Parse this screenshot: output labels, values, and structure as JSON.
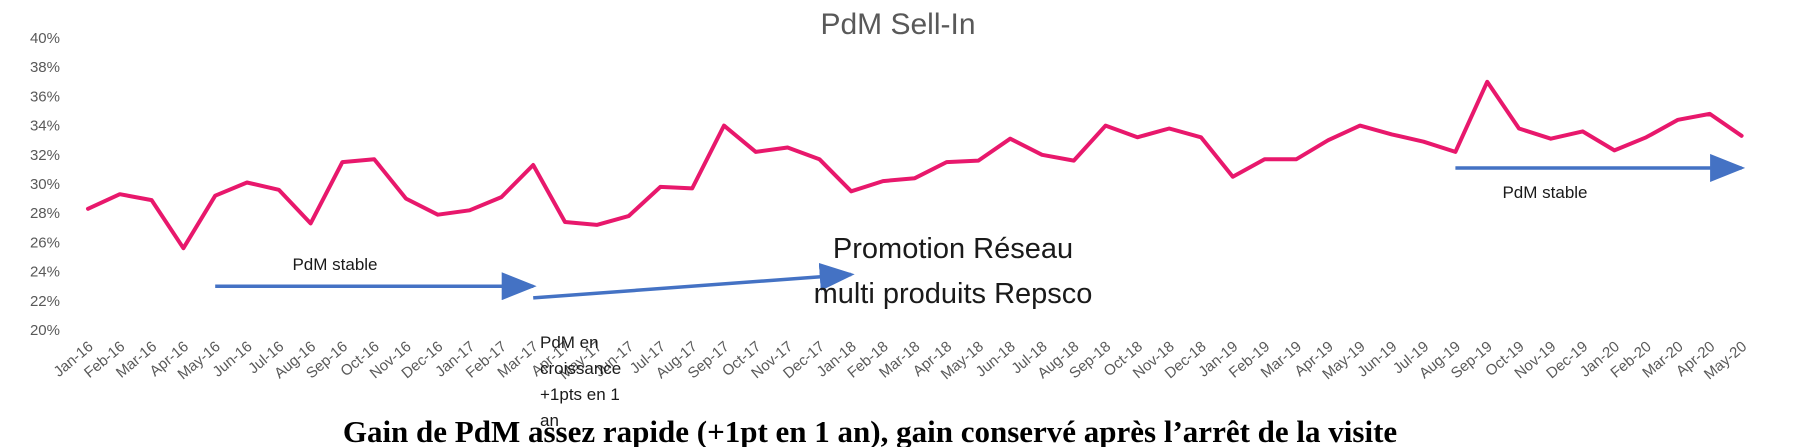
{
  "chart_data": {
    "type": "line",
    "title": "PdM Sell-In",
    "ylim": [
      20,
      40
    ],
    "yticks": [
      "20%",
      "22%",
      "24%",
      "26%",
      "28%",
      "30%",
      "32%",
      "34%",
      "36%",
      "38%",
      "40%"
    ],
    "grid": false,
    "categories": [
      "Jan-16",
      "Feb-16",
      "Mar-16",
      "Apr-16",
      "May-16",
      "Jun-16",
      "Jul-16",
      "Aug-16",
      "Sep-16",
      "Oct-16",
      "Nov-16",
      "Dec-16",
      "Jan-17",
      "Feb-17",
      "Mar-17",
      "Apr-17",
      "May-17",
      "Jun-17",
      "Jul-17",
      "Aug-17",
      "Sep-17",
      "Oct-17",
      "Nov-17",
      "Dec-17",
      "Jan-18",
      "Feb-18",
      "Mar-18",
      "Apr-18",
      "May-18",
      "Jun-18",
      "Jul-18",
      "Aug-18",
      "Sep-18",
      "Oct-18",
      "Nov-18",
      "Dec-18",
      "Jan-19",
      "Feb-19",
      "Mar-19",
      "Apr-19",
      "May-19",
      "Jun-19",
      "Jul-19",
      "Aug-19",
      "Sep-19",
      "Oct-19",
      "Nov-19",
      "Dec-19",
      "Jan-20",
      "Feb-20",
      "Mar-20",
      "Apr-20",
      "May-20"
    ],
    "series": [
      {
        "color": "#e8186c",
        "values": [
          28.3,
          29.3,
          28.9,
          25.6,
          29.2,
          30.1,
          29.6,
          27.3,
          31.5,
          31.7,
          29.0,
          27.9,
          28.2,
          29.1,
          31.3,
          27.4,
          27.2,
          27.8,
          29.8,
          29.7,
          34.0,
          32.2,
          32.5,
          31.7,
          29.5,
          30.2,
          30.4,
          31.5,
          31.6,
          33.1,
          32.0,
          31.6,
          34.0,
          33.2,
          33.8,
          33.2,
          30.5,
          31.7,
          31.7,
          33.0,
          34.0,
          33.4,
          32.9,
          32.2,
          37.0,
          33.8,
          33.1,
          33.6,
          32.3,
          33.2,
          34.4,
          34.8,
          33.3
        ]
      }
    ],
    "annotations": {
      "stable_1": "PdM stable",
      "growth_line1": "PdM en",
      "growth_line2": "croissance",
      "growth_line3": "+1pts en 1",
      "growth_line4": "an",
      "promo_line1": "Promotion Réseau",
      "promo_line2": "multi produits Repsco",
      "stable_2": "PdM stable"
    },
    "arrows": [
      {
        "from": [
          "May-16",
          23.0
        ],
        "to": [
          "Mar-17",
          23.0
        ]
      },
      {
        "from": [
          "Mar-17",
          22.2
        ],
        "to": [
          "Jan-18",
          23.8
        ]
      },
      {
        "from": [
          "Aug-19",
          31.1
        ],
        "to": [
          "May-20",
          31.1
        ]
      }
    ],
    "arrow_color": "#4472c4",
    "caption": "Gain de PdM assez rapide (+1pt en 1 an), gain conservé après l’arrêt de la visite"
  }
}
